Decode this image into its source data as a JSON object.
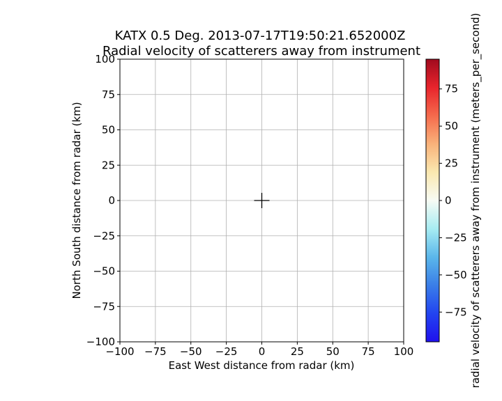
{
  "chart_data": {
    "type": "heatmap",
    "title_line1": "KATX 0.5 Deg. 2013-07-17T19:50:21.652000Z",
    "title_line2": "Radial velocity of scatterers away from instrument",
    "xlabel": "East West distance from radar (km)",
    "ylabel": "North South distance from radar (km)",
    "xlim": [
      -100,
      100
    ],
    "ylim": [
      -100,
      100
    ],
    "x_ticks": [
      -100,
      -75,
      -50,
      -25,
      0,
      25,
      50,
      75,
      100
    ],
    "y_ticks": [
      -100,
      -75,
      -50,
      -25,
      0,
      25,
      50,
      75,
      100
    ],
    "x_tick_labels": [
      "−100",
      "−75",
      "−50",
      "−25",
      "0",
      "25",
      "50",
      "75",
      "100"
    ],
    "y_tick_labels": [
      "−100",
      "−75",
      "−50",
      "−25",
      "0",
      "25",
      "50",
      "75",
      "100"
    ],
    "grid": true,
    "radar_marker": {
      "x": 0,
      "y": 0,
      "symbol": "+"
    },
    "colorbar": {
      "label": "radial velocity of scatterers away from instrument (meters_per_second)",
      "vmin": -95,
      "vmax": 95,
      "ticks": [
        -75,
        -50,
        -25,
        0,
        25,
        50,
        75
      ],
      "tick_labels": [
        "−75",
        "−50",
        "−25",
        "0",
        "25",
        "50",
        "75"
      ],
      "colormap": "pyart_BuDRd18",
      "colors": [
        "#2010ee",
        "#2244f0",
        "#3a7ee8",
        "#5bb7ea",
        "#a7ecf2",
        "#f7fbf4",
        "#fae8b0",
        "#f9b27a",
        "#f56a4c",
        "#e8242c",
        "#a00a1e"
      ]
    }
  }
}
